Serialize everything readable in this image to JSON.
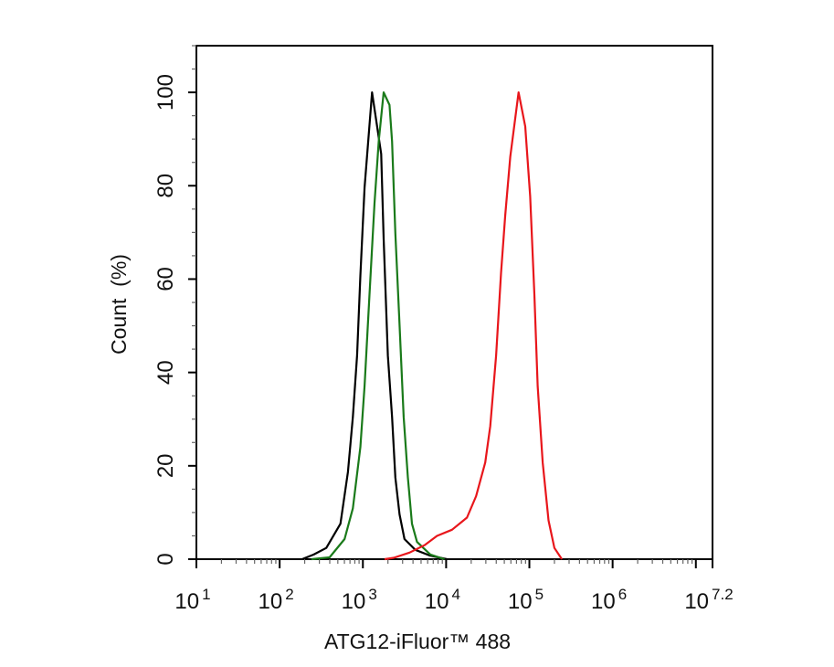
{
  "chart_data": {
    "type": "line",
    "title": "",
    "xlabel": "ATG12-iFluor™ 488",
    "ylabel": "Count  (%)",
    "x_scale": "log",
    "xlim_log10": [
      1,
      7.2
    ],
    "ylim": [
      0,
      110
    ],
    "grid": false,
    "legend": "none",
    "x_ticks": [
      {
        "base": "10",
        "exp": "1",
        "log10": 1
      },
      {
        "base": "10",
        "exp": "2",
        "log10": 2
      },
      {
        "base": "10",
        "exp": "3",
        "log10": 3
      },
      {
        "base": "10",
        "exp": "4",
        "log10": 4
      },
      {
        "base": "10",
        "exp": "5",
        "log10": 5
      },
      {
        "base": "10",
        "exp": "6",
        "log10": 6
      },
      {
        "base": "10",
        "exp": "7.2",
        "log10": 7.2
      }
    ],
    "y_ticks": [
      "0",
      "20",
      "40",
      "60",
      "80",
      "100"
    ],
    "series": [
      {
        "color": "#000000",
        "log10_x": [
          2.27,
          2.41,
          2.56,
          2.73,
          2.82,
          2.88,
          2.93,
          2.97,
          3.02,
          3.11,
          3.22,
          3.25,
          3.3,
          3.35,
          3.39,
          3.44,
          3.5,
          3.63,
          3.8,
          4.01
        ],
        "y": [
          0,
          1,
          2.4,
          7.6,
          18.7,
          30.5,
          43.6,
          60.7,
          79.6,
          100,
          86.8,
          68.6,
          43.6,
          30.5,
          17.5,
          9.6,
          4.3,
          2,
          0.8,
          0
        ]
      },
      {
        "color": "#1a7a1a",
        "log10_x": [
          2.38,
          2.6,
          2.78,
          2.88,
          2.97,
          3.02,
          3.08,
          3.14,
          3.19,
          3.25,
          3.32,
          3.35,
          3.39,
          3.44,
          3.49,
          3.54,
          3.59,
          3.65,
          3.81,
          3.98
        ],
        "y": [
          0,
          0.4,
          4.3,
          10.9,
          24,
          37.1,
          56.7,
          76.3,
          89.5,
          100,
          97.3,
          89.5,
          69.8,
          50.2,
          30.5,
          17.5,
          7.6,
          3.7,
          1,
          0
        ]
      },
      {
        "color": "#e8161b",
        "log10_x": [
          3.26,
          3.37,
          3.56,
          3.74,
          3.89,
          4.07,
          4.25,
          4.36,
          4.47,
          4.53,
          4.6,
          4.66,
          4.71,
          4.77,
          4.87,
          4.95,
          5.01,
          5.06,
          5.1,
          5.16,
          5.23,
          5.3,
          5.39
        ],
        "y": [
          0,
          0.3,
          1.4,
          3,
          5,
          6.3,
          8.9,
          13.5,
          20.7,
          28.5,
          43.6,
          61.3,
          73.7,
          86.2,
          100,
          92.7,
          77.7,
          56.7,
          37.1,
          20.7,
          8.3,
          2.4,
          0
        ]
      }
    ]
  }
}
